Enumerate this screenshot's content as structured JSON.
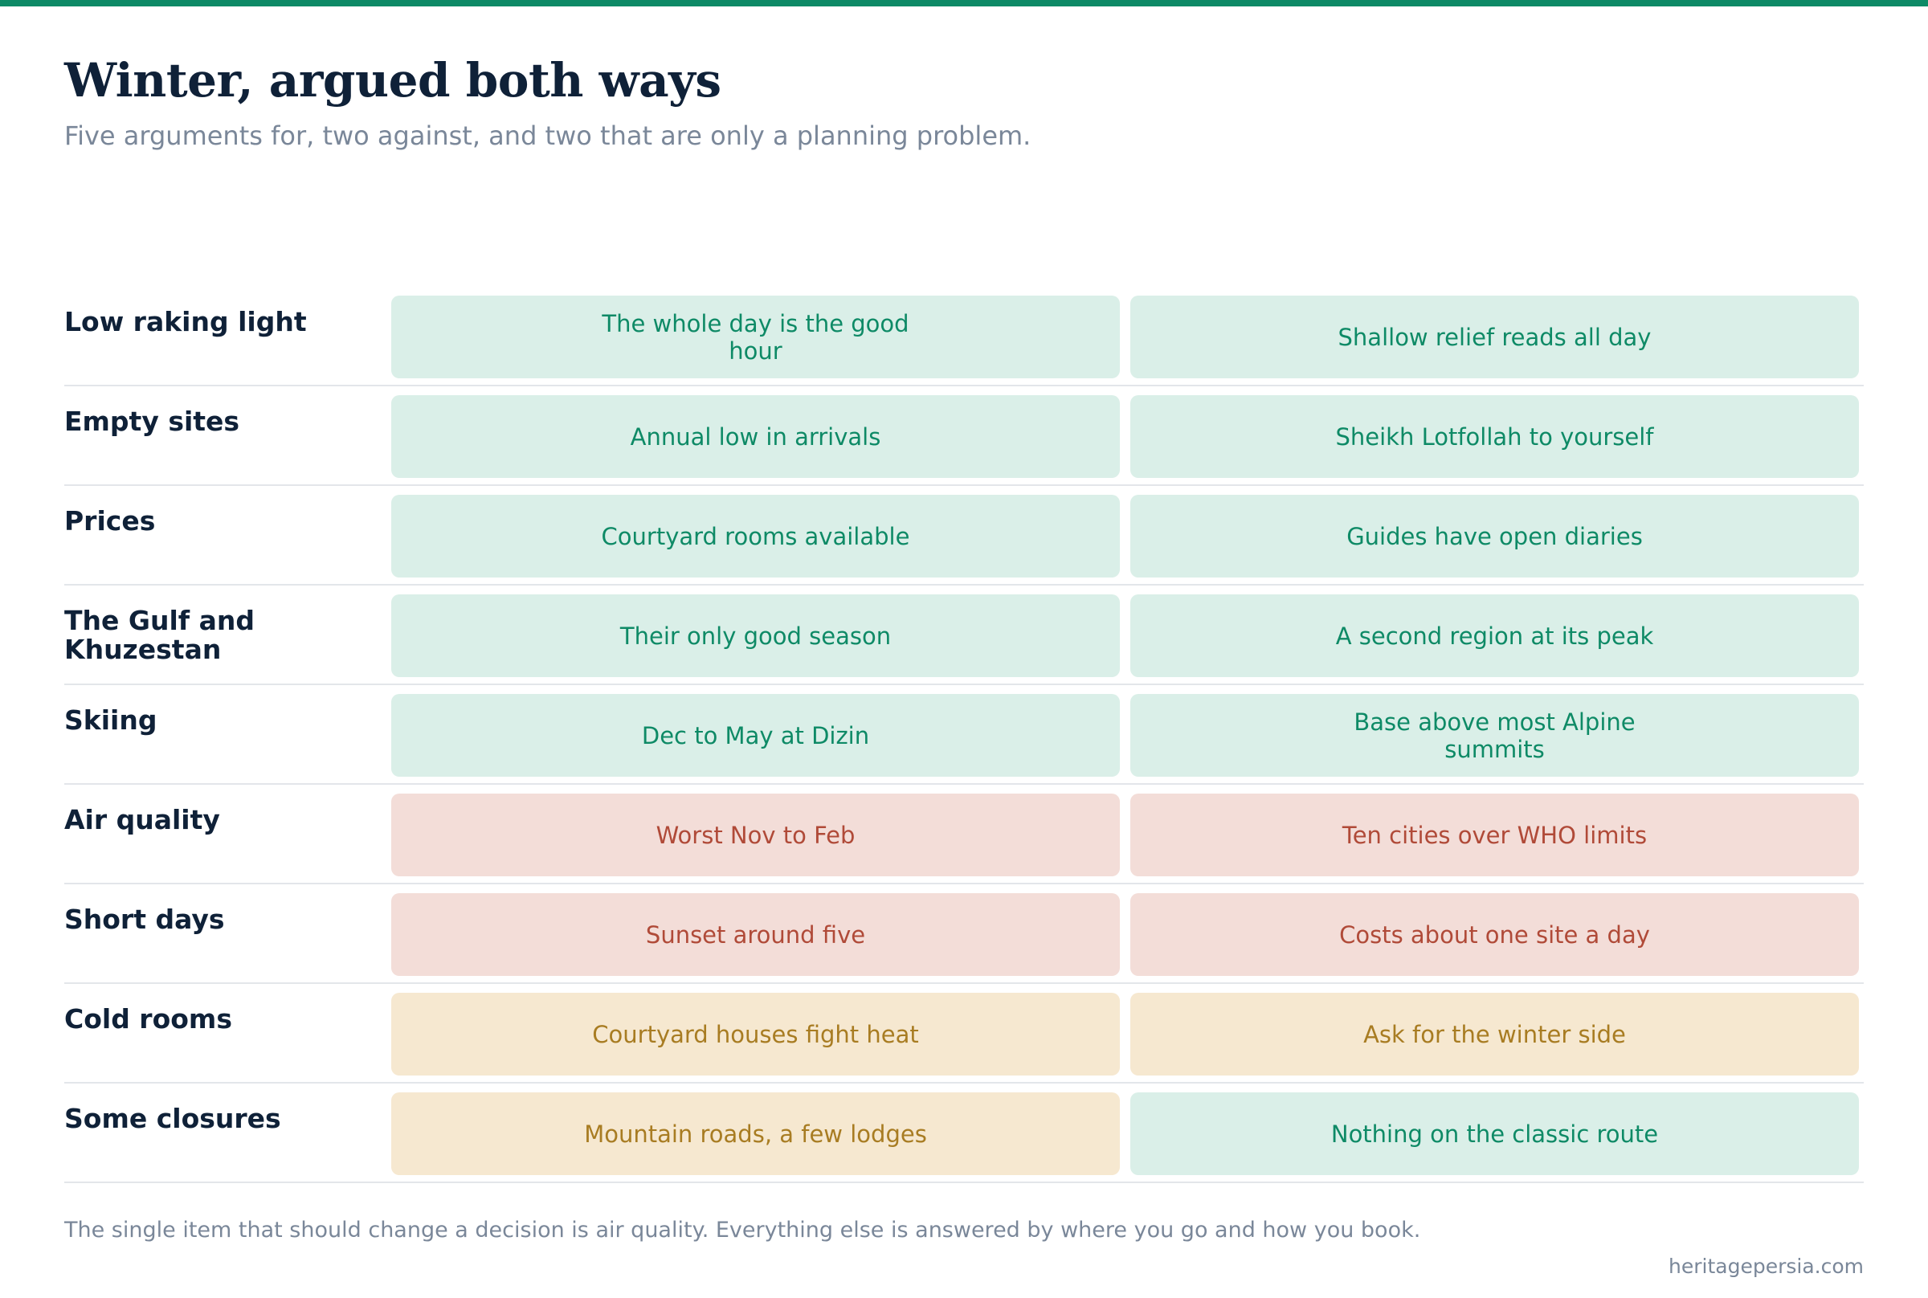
{
  "header": {
    "title": "Winter, argued both ways",
    "subtitle": "Five arguments for, two against, and two that are only a planning problem."
  },
  "colors": {
    "accent": "#0e8a66",
    "for": "#daefe8",
    "against": "#f3ddd8",
    "planning": "#f6e8d0"
  },
  "rows": [
    {
      "label": "Low raking light",
      "cells": [
        {
          "text": "The whole day is the good hour",
          "kind": "good"
        },
        {
          "text": "Shallow relief reads all day",
          "kind": "good"
        }
      ]
    },
    {
      "label": "Empty sites",
      "cells": [
        {
          "text": "Annual low in arrivals",
          "kind": "good"
        },
        {
          "text": "Sheikh Lotfollah to yourself",
          "kind": "good"
        }
      ]
    },
    {
      "label": "Prices",
      "cells": [
        {
          "text": "Courtyard rooms available",
          "kind": "good"
        },
        {
          "text": "Guides have open diaries",
          "kind": "good"
        }
      ]
    },
    {
      "label": "The Gulf and Khuzestan",
      "cells": [
        {
          "text": "Their only good season",
          "kind": "good"
        },
        {
          "text": "A second region at its peak",
          "kind": "good"
        }
      ]
    },
    {
      "label": "Skiing",
      "cells": [
        {
          "text": "Dec to May at Dizin",
          "kind": "good"
        },
        {
          "text": "Base above most Alpine summits",
          "kind": "good"
        }
      ]
    },
    {
      "label": "Air quality",
      "cells": [
        {
          "text": "Worst Nov to Feb",
          "kind": "bad"
        },
        {
          "text": "Ten cities over WHO limits",
          "kind": "bad"
        }
      ]
    },
    {
      "label": "Short days",
      "cells": [
        {
          "text": "Sunset around five",
          "kind": "bad"
        },
        {
          "text": "Costs about one site a day",
          "kind": "bad"
        }
      ]
    },
    {
      "label": "Cold rooms",
      "cells": [
        {
          "text": "Courtyard houses fight heat",
          "kind": "plan"
        },
        {
          "text": "Ask for the winter side",
          "kind": "plan"
        }
      ]
    },
    {
      "label": "Some closures",
      "cells": [
        {
          "text": "Mountain roads, a few lodges",
          "kind": "plan"
        },
        {
          "text": "Nothing on the classic route",
          "kind": "good"
        }
      ]
    }
  ],
  "footer": {
    "note": "The single item that should change a decision is air quality. Everything else is answered by where you go and how you book.",
    "source": "heritagepersia.com"
  }
}
